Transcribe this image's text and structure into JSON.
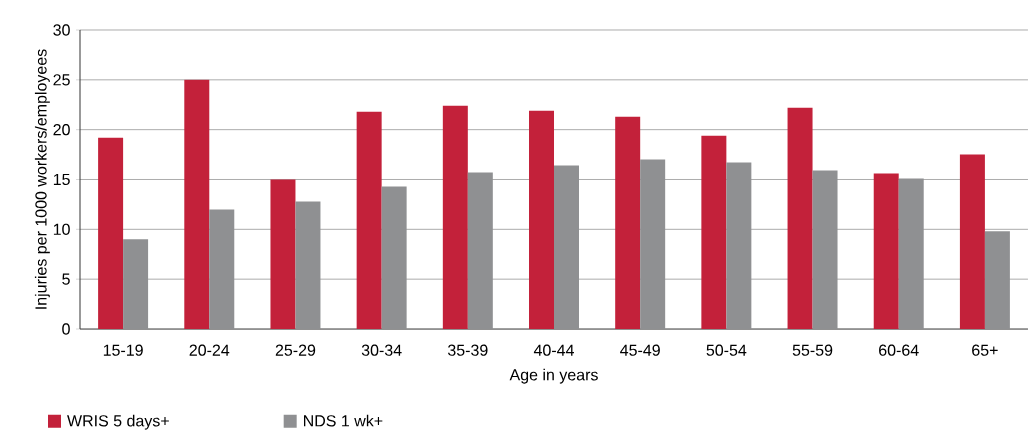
{
  "chart_data": {
    "type": "bar",
    "xlabel": "Age in years",
    "ylabel": "Injuries per 1000 workers/employees",
    "categories": [
      "15-19",
      "20-24",
      "25-29",
      "30-34",
      "35-39",
      "40-44",
      "45-49",
      "50-54",
      "55-59",
      "60-64",
      "65+"
    ],
    "series": [
      {
        "name": "WRIS 5 days+",
        "color": "#c3213a",
        "values": [
          19.2,
          25,
          15,
          21.8,
          22.4,
          21.9,
          21.3,
          19.4,
          22.2,
          15.6,
          17.5
        ]
      },
      {
        "name": "NDS 1 wk+",
        "color": "#8f9092",
        "values": [
          9,
          12,
          12.8,
          14.3,
          15.7,
          16.4,
          17.0,
          16.7,
          15.9,
          15.1,
          9.8
        ]
      }
    ],
    "ylim": [
      0,
      30
    ],
    "yticks": [
      0,
      5,
      10,
      15,
      20,
      25,
      30
    ],
    "grid": "y",
    "legend": "bottom left"
  }
}
